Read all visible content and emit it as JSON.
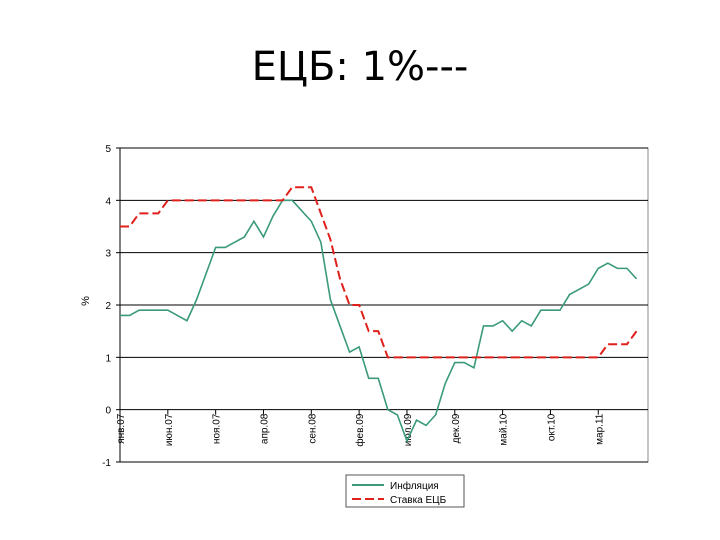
{
  "slide": {
    "title": "ЕЦБ: 1%---"
  },
  "chart_data": {
    "type": "line",
    "title": "",
    "xlabel": "",
    "ylabel": "%",
    "ylim": [
      -1,
      5
    ],
    "yticks": [
      "5",
      "4",
      "3",
      "2",
      "1",
      "0",
      "-1"
    ],
    "x_tick_labels": [
      "янв.07",
      "июн.07",
      "ноя.07",
      "апр.08",
      "сен.08",
      "фев.09",
      "июл.09",
      "дек.09",
      "май.10",
      "окт.10",
      "мар.11"
    ],
    "x_period": "monthly, Jan 2007 – Jul 2011",
    "grid": "horizontal",
    "legend_position": "bottom",
    "colors": {
      "inflation": "#3a9a7a",
      "rate": "#e0201b"
    },
    "series": [
      {
        "name": "Инфляция",
        "style": "solid",
        "x": [
          "2007-01",
          "2007-02",
          "2007-03",
          "2007-04",
          "2007-05",
          "2007-06",
          "2007-07",
          "2007-08",
          "2007-09",
          "2007-10",
          "2007-11",
          "2007-12",
          "2008-01",
          "2008-02",
          "2008-03",
          "2008-04",
          "2008-05",
          "2008-06",
          "2008-07",
          "2008-08",
          "2008-09",
          "2008-10",
          "2008-11",
          "2008-12",
          "2009-01",
          "2009-02",
          "2009-03",
          "2009-04",
          "2009-05",
          "2009-06",
          "2009-07",
          "2009-08",
          "2009-09",
          "2009-10",
          "2009-11",
          "2009-12",
          "2010-01",
          "2010-02",
          "2010-03",
          "2010-04",
          "2010-05",
          "2010-06",
          "2010-07",
          "2010-08",
          "2010-09",
          "2010-10",
          "2010-11",
          "2010-12",
          "2011-01",
          "2011-02",
          "2011-03",
          "2011-04",
          "2011-05",
          "2011-06",
          "2011-07"
        ],
        "values": [
          1.8,
          1.8,
          1.9,
          1.9,
          1.9,
          1.9,
          1.8,
          1.7,
          2.1,
          2.6,
          3.1,
          3.1,
          3.2,
          3.3,
          3.6,
          3.3,
          3.7,
          4.0,
          4.0,
          3.8,
          3.6,
          3.2,
          2.1,
          1.6,
          1.1,
          1.2,
          0.6,
          0.6,
          0.0,
          -0.1,
          -0.6,
          -0.2,
          -0.3,
          -0.1,
          0.5,
          0.9,
          0.9,
          0.8,
          1.6,
          1.6,
          1.7,
          1.5,
          1.7,
          1.6,
          1.9,
          1.9,
          1.9,
          2.2,
          2.3,
          2.4,
          2.7,
          2.8,
          2.7,
          2.7,
          2.5
        ]
      },
      {
        "name": "Ставка ЕЦБ",
        "style": "dashed",
        "x": [
          "2007-01",
          "2007-02",
          "2007-03",
          "2007-04",
          "2007-05",
          "2007-06",
          "2007-07",
          "2007-08",
          "2007-09",
          "2007-10",
          "2007-11",
          "2007-12",
          "2008-01",
          "2008-02",
          "2008-03",
          "2008-04",
          "2008-05",
          "2008-06",
          "2008-07",
          "2008-08",
          "2008-09",
          "2008-10",
          "2008-11",
          "2008-12",
          "2009-01",
          "2009-02",
          "2009-03",
          "2009-04",
          "2009-05",
          "2009-06",
          "2009-07",
          "2009-08",
          "2009-09",
          "2009-10",
          "2009-11",
          "2009-12",
          "2010-01",
          "2010-02",
          "2010-03",
          "2010-04",
          "2010-05",
          "2010-06",
          "2010-07",
          "2010-08",
          "2010-09",
          "2010-10",
          "2010-11",
          "2010-12",
          "2011-01",
          "2011-02",
          "2011-03",
          "2011-04",
          "2011-05",
          "2011-06",
          "2011-07"
        ],
        "values": [
          3.5,
          3.5,
          3.75,
          3.75,
          3.75,
          4.0,
          4.0,
          4.0,
          4.0,
          4.0,
          4.0,
          4.0,
          4.0,
          4.0,
          4.0,
          4.0,
          4.0,
          4.0,
          4.25,
          4.25,
          4.25,
          3.75,
          3.25,
          2.5,
          2.0,
          2.0,
          1.5,
          1.5,
          1.0,
          1.0,
          1.0,
          1.0,
          1.0,
          1.0,
          1.0,
          1.0,
          1.0,
          1.0,
          1.0,
          1.0,
          1.0,
          1.0,
          1.0,
          1.0,
          1.0,
          1.0,
          1.0,
          1.0,
          1.0,
          1.0,
          1.0,
          1.25,
          1.25,
          1.25,
          1.5
        ]
      }
    ]
  }
}
